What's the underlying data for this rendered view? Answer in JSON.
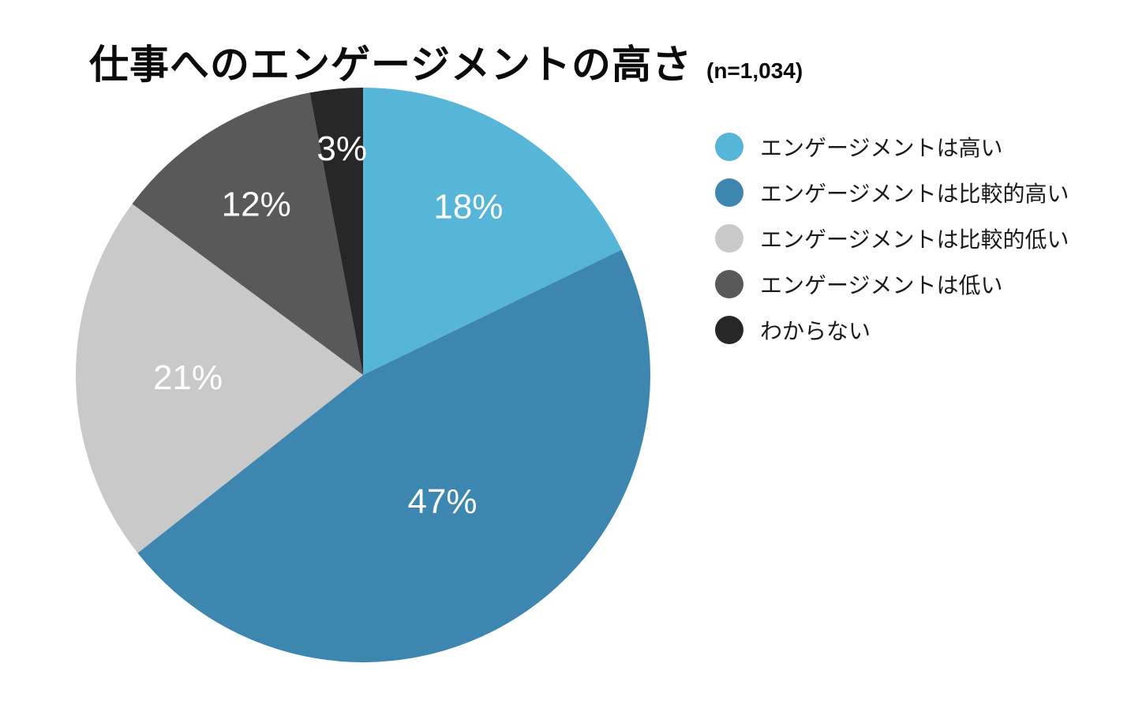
{
  "title": {
    "main": "仕事へのエンゲージメントの高さ",
    "sample": "(n=1,034)"
  },
  "chart_data": {
    "type": "pie",
    "title": "仕事へのエンゲージメントの高さ",
    "sample_size_label": "(n=1,034)",
    "n": 1034,
    "unit": "percent",
    "slices": [
      {
        "label": "エンゲージメントは高い",
        "value": 18,
        "display": "18%",
        "color": "#57B6D8"
      },
      {
        "label": "エンゲージメントは比較的高い",
        "value": 47,
        "display": "47%",
        "color": "#3C86AF"
      },
      {
        "label": "エンゲージメントは比較的低い",
        "value": 21,
        "display": "21%",
        "color": "#C9C9CA"
      },
      {
        "label": "エンゲージメントは低い",
        "value": 12,
        "display": "12%",
        "color": "#595959"
      },
      {
        "label": "わからない",
        "value": 3,
        "display": "3%",
        "color": "#272727"
      }
    ],
    "layout": {
      "start_angle_deg": 0,
      "direction": "clockwise",
      "center": [
        460,
        475
      ],
      "radius": 364,
      "label_radius_fraction": [
        0.69,
        0.52,
        0.61,
        0.7,
        0.79
      ],
      "label_color": "#FFFFFF",
      "legend_position": "right",
      "background": "#FFFFFF"
    }
  }
}
